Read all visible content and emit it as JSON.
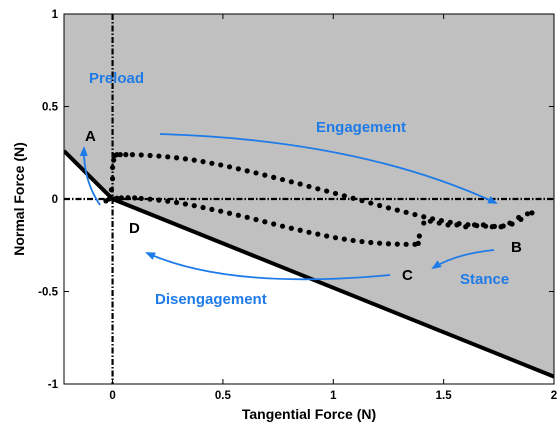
{
  "chart_data": {
    "type": "scatter",
    "xlabel": "Tangential Force (N)",
    "ylabel": "Normal Force (N)",
    "xlim": [
      -0.22,
      2.0
    ],
    "ylim": [
      -1.0,
      1.0
    ],
    "xticks": [
      0,
      0.5,
      1,
      1.5,
      2
    ],
    "xtick_labels": [
      "0",
      "0.5",
      "1",
      "1.5",
      "2"
    ],
    "yticks": [
      -1,
      -0.5,
      0,
      0.5,
      1
    ],
    "ytick_labels": [
      "-1",
      "-0.5",
      "0",
      "0.5",
      "1"
    ],
    "region_color": "#c0c0c0",
    "region_boundary": [
      {
        "x": -0.22,
        "y": 0.26
      },
      {
        "x": 0.0,
        "y": 0.0
      },
      {
        "x": 2.0,
        "y": -0.96
      }
    ],
    "crosshair": {
      "x": 0,
      "y": 0,
      "style": "dash-dot"
    },
    "series": [
      {
        "marker": "circle",
        "color": "#000000",
        "x": [
          -0.03,
          -0.015,
          -0.005,
          0.0,
          0.0,
          0.005,
          0.01,
          0.02,
          0.035,
          0.06,
          0.09,
          0.13,
          0.17,
          0.21,
          0.25,
          0.29,
          0.33,
          0.37,
          0.41,
          0.45,
          0.49,
          0.53,
          0.57,
          0.61,
          0.65,
          0.69,
          0.73,
          0.77,
          0.81,
          0.85,
          0.89,
          0.93,
          0.97,
          1.01,
          1.05,
          1.09,
          1.13,
          1.17,
          1.21,
          1.25,
          1.29,
          1.33,
          1.37,
          1.41,
          1.45,
          1.49,
          1.53,
          1.57,
          1.61,
          1.65,
          1.69,
          1.73,
          1.77,
          1.81,
          1.85,
          1.9
        ],
        "y": [
          -0.01,
          0.0,
          0.05,
          0.11,
          0.17,
          0.21,
          0.235,
          0.24,
          0.24,
          0.24,
          0.24,
          0.238,
          0.235,
          0.232,
          0.228,
          0.223,
          0.217,
          0.21,
          0.202,
          0.193,
          0.184,
          0.174,
          0.163,
          0.152,
          0.141,
          0.129,
          0.117,
          0.105,
          0.093,
          0.081,
          0.068,
          0.055,
          0.043,
          0.03,
          0.017,
          0.004,
          -0.009,
          -0.022,
          -0.035,
          -0.048,
          -0.06,
          -0.072,
          -0.084,
          -0.096,
          -0.107,
          -0.117,
          -0.126,
          -0.133,
          -0.139,
          -0.144,
          -0.147,
          -0.148,
          -0.146,
          -0.135,
          -0.11,
          -0.075
        ]
      },
      {
        "marker": "circle",
        "color": "#000000",
        "x": [
          1.88,
          1.84,
          1.8,
          1.76,
          1.72,
          1.68,
          1.64,
          1.6,
          1.56,
          1.52,
          1.48,
          1.44,
          1.41,
          1.39,
          1.385,
          1.37,
          1.33,
          1.29,
          1.25,
          1.21,
          1.17,
          1.13,
          1.09,
          1.05,
          1.01,
          0.97,
          0.93,
          0.89,
          0.85,
          0.81,
          0.77,
          0.73,
          0.69,
          0.65,
          0.61,
          0.57,
          0.53,
          0.49,
          0.45,
          0.41,
          0.37,
          0.33,
          0.29,
          0.25,
          0.21,
          0.17,
          0.13,
          0.1,
          0.07,
          0.04,
          0.02,
          0.005
        ],
        "y": [
          -0.08,
          -0.1,
          -0.13,
          -0.15,
          -0.15,
          -0.14,
          -0.14,
          -0.15,
          -0.14,
          -0.14,
          -0.13,
          -0.12,
          -0.13,
          -0.2,
          -0.24,
          -0.245,
          -0.245,
          -0.244,
          -0.242,
          -0.239,
          -0.235,
          -0.23,
          -0.224,
          -0.217,
          -0.209,
          -0.2,
          -0.19,
          -0.18,
          -0.169,
          -0.158,
          -0.147,
          -0.135,
          -0.123,
          -0.111,
          -0.099,
          -0.088,
          -0.077,
          -0.066,
          -0.056,
          -0.046,
          -0.036,
          -0.027,
          -0.019,
          -0.012,
          -0.006,
          -0.001,
          0.003,
          0.006,
          0.007,
          0.006,
          0.004,
          0.0
        ]
      }
    ],
    "annotations": [
      {
        "text": "Preload",
        "color": "#1f7be8"
      },
      {
        "text": "Engagement",
        "color": "#1f7be8"
      },
      {
        "text": "Stance",
        "color": "#1f7be8"
      },
      {
        "text": "Disengagement",
        "color": "#1f7be8"
      },
      {
        "text": "A",
        "color": "#000000"
      },
      {
        "text": "B",
        "color": "#000000"
      },
      {
        "text": "C",
        "color": "#000000"
      },
      {
        "text": "D",
        "color": "#000000"
      }
    ]
  }
}
